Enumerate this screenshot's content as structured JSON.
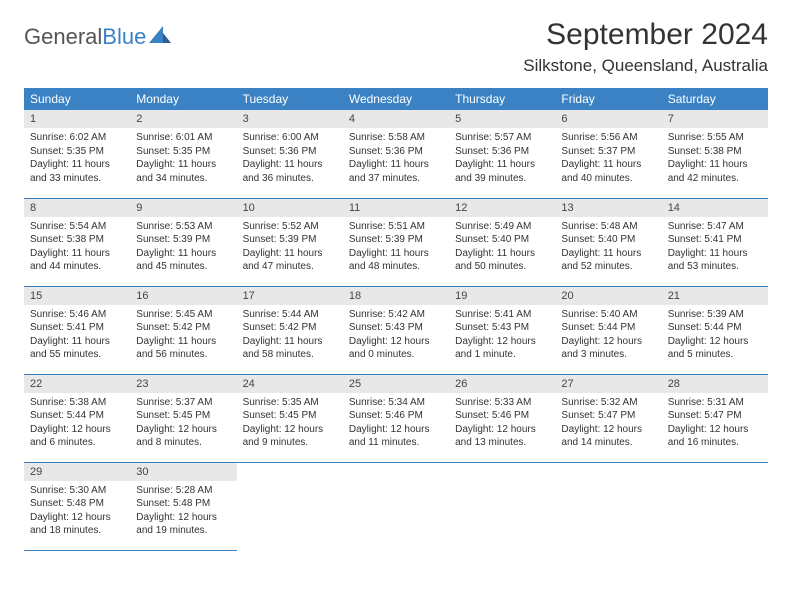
{
  "brand": {
    "part1": "General",
    "part2": "Blue"
  },
  "title": "September 2024",
  "location": "Silkstone, Queensland, Australia",
  "colors": {
    "header_bg": "#3b82c4",
    "header_text": "#ffffff",
    "daynum_bg": "#e8e8e8",
    "border": "#3b82c4",
    "text": "#333333",
    "background": "#ffffff"
  },
  "typography": {
    "title_fontsize": 30,
    "location_fontsize": 17,
    "dayheader_fontsize": 12,
    "daynum_fontsize": 11,
    "body_fontsize": 10
  },
  "day_headers": [
    "Sunday",
    "Monday",
    "Tuesday",
    "Wednesday",
    "Thursday",
    "Friday",
    "Saturday"
  ],
  "weeks": [
    [
      {
        "n": "1",
        "sr": "6:02 AM",
        "ss": "5:35 PM",
        "dl": "11 hours and 33 minutes."
      },
      {
        "n": "2",
        "sr": "6:01 AM",
        "ss": "5:35 PM",
        "dl": "11 hours and 34 minutes."
      },
      {
        "n": "3",
        "sr": "6:00 AM",
        "ss": "5:36 PM",
        "dl": "11 hours and 36 minutes."
      },
      {
        "n": "4",
        "sr": "5:58 AM",
        "ss": "5:36 PM",
        "dl": "11 hours and 37 minutes."
      },
      {
        "n": "5",
        "sr": "5:57 AM",
        "ss": "5:36 PM",
        "dl": "11 hours and 39 minutes."
      },
      {
        "n": "6",
        "sr": "5:56 AM",
        "ss": "5:37 PM",
        "dl": "11 hours and 40 minutes."
      },
      {
        "n": "7",
        "sr": "5:55 AM",
        "ss": "5:38 PM",
        "dl": "11 hours and 42 minutes."
      }
    ],
    [
      {
        "n": "8",
        "sr": "5:54 AM",
        "ss": "5:38 PM",
        "dl": "11 hours and 44 minutes."
      },
      {
        "n": "9",
        "sr": "5:53 AM",
        "ss": "5:39 PM",
        "dl": "11 hours and 45 minutes."
      },
      {
        "n": "10",
        "sr": "5:52 AM",
        "ss": "5:39 PM",
        "dl": "11 hours and 47 minutes."
      },
      {
        "n": "11",
        "sr": "5:51 AM",
        "ss": "5:39 PM",
        "dl": "11 hours and 48 minutes."
      },
      {
        "n": "12",
        "sr": "5:49 AM",
        "ss": "5:40 PM",
        "dl": "11 hours and 50 minutes."
      },
      {
        "n": "13",
        "sr": "5:48 AM",
        "ss": "5:40 PM",
        "dl": "11 hours and 52 minutes."
      },
      {
        "n": "14",
        "sr": "5:47 AM",
        "ss": "5:41 PM",
        "dl": "11 hours and 53 minutes."
      }
    ],
    [
      {
        "n": "15",
        "sr": "5:46 AM",
        "ss": "5:41 PM",
        "dl": "11 hours and 55 minutes."
      },
      {
        "n": "16",
        "sr": "5:45 AM",
        "ss": "5:42 PM",
        "dl": "11 hours and 56 minutes."
      },
      {
        "n": "17",
        "sr": "5:44 AM",
        "ss": "5:42 PM",
        "dl": "11 hours and 58 minutes."
      },
      {
        "n": "18",
        "sr": "5:42 AM",
        "ss": "5:43 PM",
        "dl": "12 hours and 0 minutes."
      },
      {
        "n": "19",
        "sr": "5:41 AM",
        "ss": "5:43 PM",
        "dl": "12 hours and 1 minute."
      },
      {
        "n": "20",
        "sr": "5:40 AM",
        "ss": "5:44 PM",
        "dl": "12 hours and 3 minutes."
      },
      {
        "n": "21",
        "sr": "5:39 AM",
        "ss": "5:44 PM",
        "dl": "12 hours and 5 minutes."
      }
    ],
    [
      {
        "n": "22",
        "sr": "5:38 AM",
        "ss": "5:44 PM",
        "dl": "12 hours and 6 minutes."
      },
      {
        "n": "23",
        "sr": "5:37 AM",
        "ss": "5:45 PM",
        "dl": "12 hours and 8 minutes."
      },
      {
        "n": "24",
        "sr": "5:35 AM",
        "ss": "5:45 PM",
        "dl": "12 hours and 9 minutes."
      },
      {
        "n": "25",
        "sr": "5:34 AM",
        "ss": "5:46 PM",
        "dl": "12 hours and 11 minutes."
      },
      {
        "n": "26",
        "sr": "5:33 AM",
        "ss": "5:46 PM",
        "dl": "12 hours and 13 minutes."
      },
      {
        "n": "27",
        "sr": "5:32 AM",
        "ss": "5:47 PM",
        "dl": "12 hours and 14 minutes."
      },
      {
        "n": "28",
        "sr": "5:31 AM",
        "ss": "5:47 PM",
        "dl": "12 hours and 16 minutes."
      }
    ],
    [
      {
        "n": "29",
        "sr": "5:30 AM",
        "ss": "5:48 PM",
        "dl": "12 hours and 18 minutes."
      },
      {
        "n": "30",
        "sr": "5:28 AM",
        "ss": "5:48 PM",
        "dl": "12 hours and 19 minutes."
      },
      null,
      null,
      null,
      null,
      null
    ]
  ],
  "labels": {
    "sunrise": "Sunrise: ",
    "sunset": "Sunset: ",
    "daylight": "Daylight: "
  }
}
